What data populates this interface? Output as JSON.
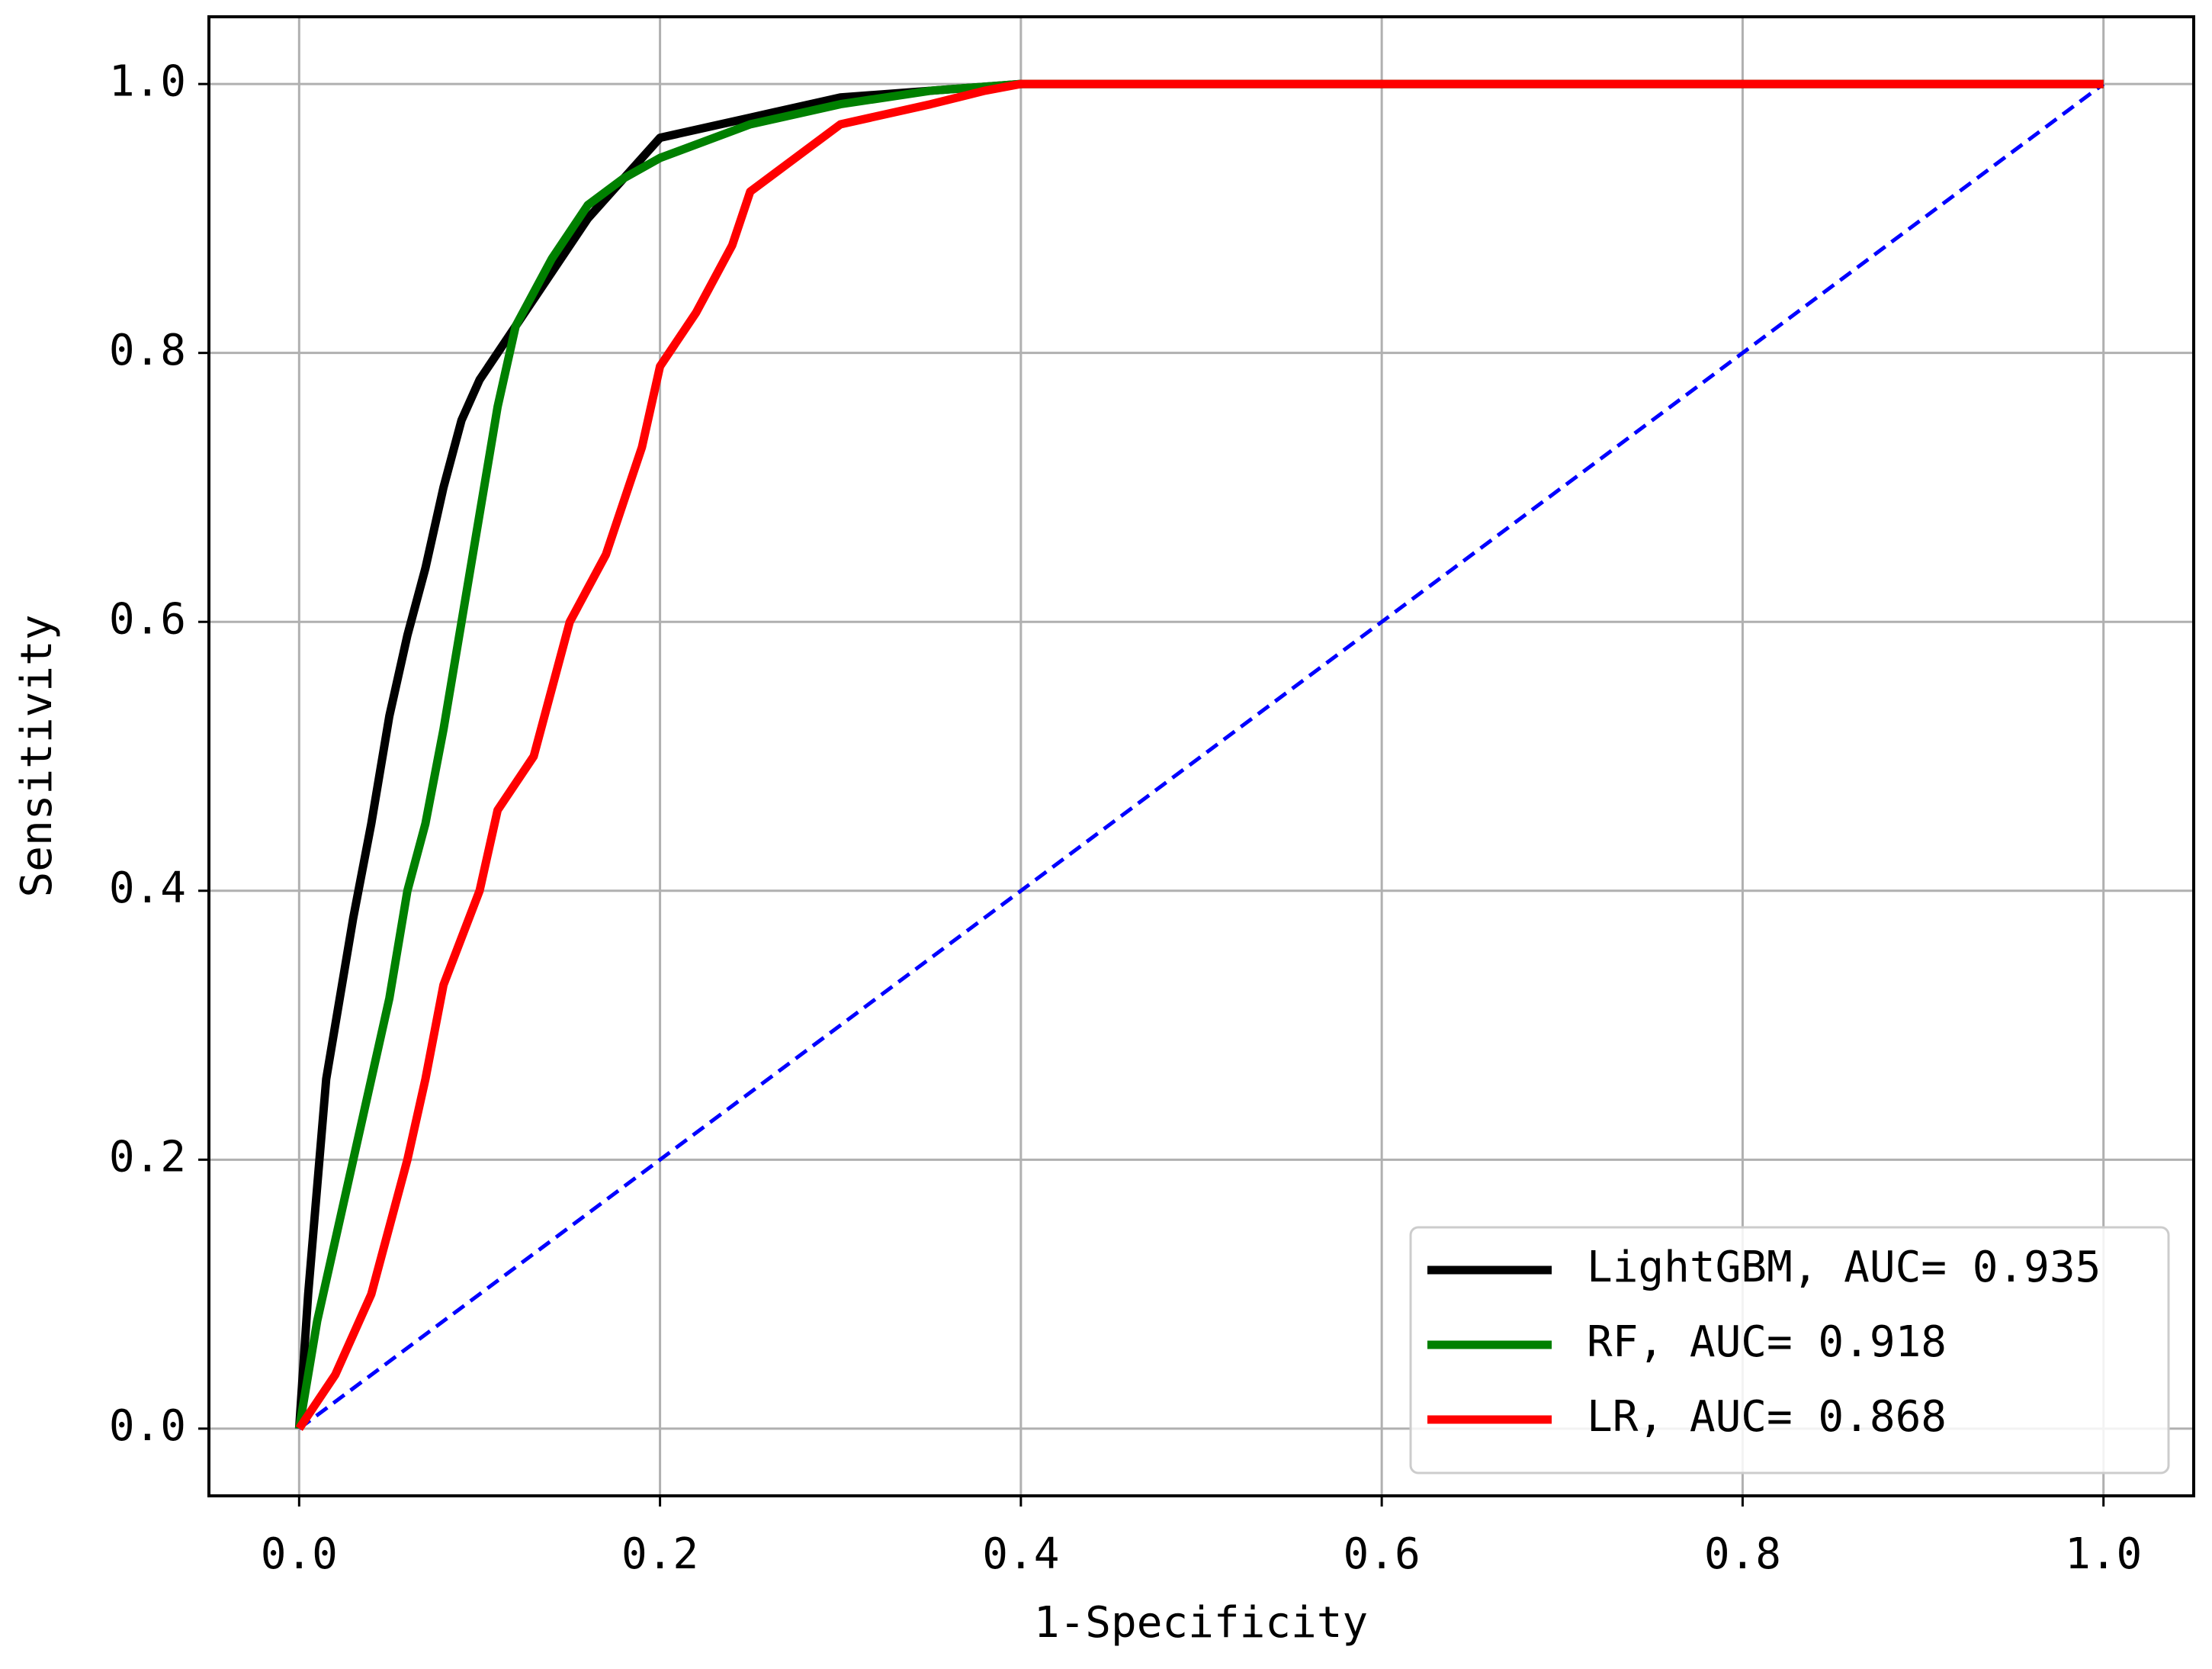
{
  "chart_data": {
    "type": "line",
    "x_label": "1-Specificity",
    "y_label": "Sensitivity",
    "xlim": [
      -0.05,
      1.05
    ],
    "ylim": [
      -0.05,
      1.05
    ],
    "xticks": [
      {
        "value": 0,
        "label": "0.0"
      },
      0.2,
      0.4,
      0.6,
      0.8,
      {
        "value": 1,
        "label": "1.0"
      }
    ],
    "yticks": [
      {
        "value": 0,
        "label": "0.0"
      },
      0.2,
      0.4,
      0.6,
      0.8,
      {
        "value": 1,
        "label": "1.0"
      }
    ],
    "grid": true,
    "legend": "lower right",
    "series": [
      {
        "name": "LightGBM, AUC= 0.935",
        "color": "#000000",
        "x": [
          0,
          0.005,
          0.01,
          0.015,
          0.02,
          0.03,
          0.04,
          0.05,
          0.06,
          0.07,
          0.08,
          0.09,
          0.1,
          0.12,
          0.14,
          0.16,
          0.18,
          0.2,
          0.25,
          0.3,
          0.35,
          0.4,
          1.0
        ],
        "values": [
          0,
          0.1,
          0.18,
          0.26,
          0.3,
          0.38,
          0.45,
          0.53,
          0.59,
          0.64,
          0.7,
          0.75,
          0.78,
          0.82,
          0.86,
          0.9,
          0.93,
          0.96,
          0.975,
          0.99,
          0.995,
          1.0,
          1.0
        ]
      },
      {
        "name": "RF, AUC= 0.918",
        "color": "#008000",
        "x": [
          0,
          0.01,
          0.02,
          0.03,
          0.04,
          0.05,
          0.06,
          0.07,
          0.08,
          0.09,
          0.1,
          0.11,
          0.12,
          0.14,
          0.16,
          0.18,
          0.2,
          0.25,
          0.3,
          0.35,
          0.4,
          1.0
        ],
        "values": [
          0,
          0.08,
          0.14,
          0.2,
          0.26,
          0.32,
          0.4,
          0.45,
          0.52,
          0.6,
          0.68,
          0.76,
          0.82,
          0.87,
          0.91,
          0.93,
          0.945,
          0.97,
          0.985,
          0.995,
          1.0,
          1.0
        ]
      },
      {
        "name": "LR, AUC= 0.868",
        "color": "#ff0000",
        "x": [
          0,
          0.02,
          0.04,
          0.06,
          0.07,
          0.08,
          0.1,
          0.11,
          0.13,
          0.14,
          0.15,
          0.17,
          0.18,
          0.19,
          0.2,
          0.22,
          0.24,
          0.25,
          0.27,
          0.3,
          0.35,
          0.38,
          0.4,
          1.0
        ],
        "values": [
          0,
          0.04,
          0.1,
          0.2,
          0.26,
          0.33,
          0.4,
          0.46,
          0.5,
          0.55,
          0.6,
          0.65,
          0.69,
          0.73,
          0.79,
          0.83,
          0.88,
          0.92,
          0.94,
          0.97,
          0.985,
          0.995,
          1.0,
          1.0
        ]
      }
    ],
    "reference_line": {
      "x": [
        0,
        1
      ],
      "values": [
        0,
        1
      ],
      "color": "#0000ff",
      "dashed": true
    }
  }
}
